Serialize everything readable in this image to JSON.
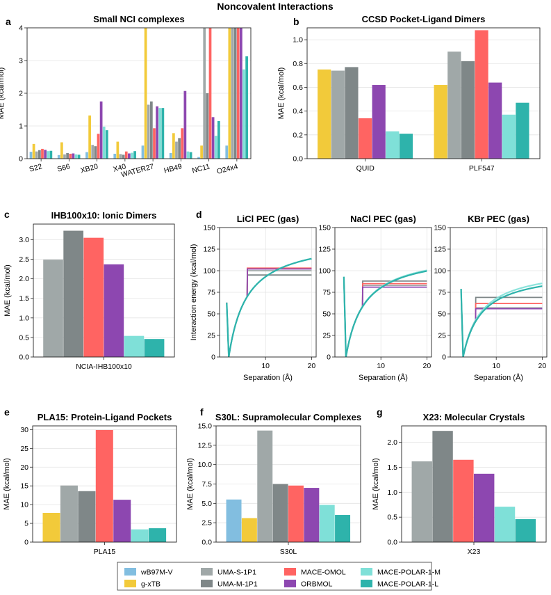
{
  "suptitle": "Noncovalent Interactions",
  "methods": [
    {
      "name": "wB97M-V",
      "color": "#82BEE0"
    },
    {
      "name": "g-xTB",
      "color": "#F2CA3A"
    },
    {
      "name": "UMA-S-1P1",
      "color": "#A0A8A8"
    },
    {
      "name": "UMA-M-1P1",
      "color": "#7F8788"
    },
    {
      "name": "MACE-OMOL",
      "color": "#FF6462"
    },
    {
      "name": "ORBMOL",
      "color": "#8D47B0"
    },
    {
      "name": "MACE-POLAR-1-M",
      "color": "#7FE0D8"
    },
    {
      "name": "MACE-POLAR-1-L",
      "color": "#2EB3AB"
    }
  ],
  "chart_data": [
    {
      "panel": "a",
      "type": "bar",
      "title": "Small NCI complexes",
      "xlabel": "",
      "ylabel": "MAE (kcal/mol)",
      "ylim": [
        0,
        4
      ],
      "yticks": [
        0,
        1,
        2,
        3,
        4
      ],
      "categories": [
        "S22",
        "S66",
        "XB20",
        "X40",
        "WATER27",
        "HB49",
        "NC11",
        "O24x4"
      ],
      "series": [
        {
          "name": "wB97M-V",
          "values": [
            0.21,
            0.11,
            0.2,
            0.15,
            0.4,
            0.17,
            0.05,
            0.4
          ]
        },
        {
          "name": "g-xTB",
          "values": [
            0.45,
            0.5,
            1.32,
            0.52,
            4.0,
            0.78,
            0.4,
            4.0
          ]
        },
        {
          "name": "UMA-S-1P1",
          "values": [
            0.22,
            0.13,
            0.42,
            0.14,
            1.65,
            0.52,
            4.0,
            4.0
          ]
        },
        {
          "name": "UMA-M-1P1",
          "values": [
            0.26,
            0.17,
            0.38,
            0.12,
            1.75,
            0.63,
            2.0,
            4.0
          ]
        },
        {
          "name": "MACE-OMOL",
          "values": [
            0.3,
            0.15,
            0.76,
            0.22,
            0.93,
            0.93,
            4.0,
            4.0
          ]
        },
        {
          "name": "ORBMOL",
          "values": [
            0.27,
            0.16,
            1.75,
            0.16,
            1.6,
            2.07,
            1.27,
            4.0
          ]
        },
        {
          "name": "MACE-POLAR-1-M",
          "values": [
            0.23,
            0.13,
            0.98,
            0.18,
            1.55,
            0.22,
            0.7,
            2.73
          ]
        },
        {
          "name": "MACE-POLAR-1-L",
          "values": [
            0.24,
            0.12,
            0.87,
            0.23,
            1.55,
            0.2,
            1.15,
            3.13
          ]
        }
      ]
    },
    {
      "panel": "b",
      "type": "bar",
      "title": "CCSD Pocket-Ligand Dimers",
      "xlabel": "",
      "ylabel": "MAE (kcal/mol)",
      "ylim": [
        0,
        1.1
      ],
      "yticks": [
        0.0,
        0.2,
        0.4,
        0.6,
        0.8,
        1.0
      ],
      "categories": [
        "QUID",
        "PLF547"
      ],
      "series": [
        {
          "name": "g-xTB",
          "values": [
            0.75,
            0.62
          ]
        },
        {
          "name": "UMA-S-1P1",
          "values": [
            0.74,
            0.9
          ]
        },
        {
          "name": "UMA-M-1P1",
          "values": [
            0.77,
            0.82
          ]
        },
        {
          "name": "MACE-OMOL",
          "values": [
            0.34,
            1.08
          ]
        },
        {
          "name": "ORBMOL",
          "values": [
            0.62,
            0.64
          ]
        },
        {
          "name": "MACE-POLAR-1-M",
          "values": [
            0.23,
            0.37
          ]
        },
        {
          "name": "MACE-POLAR-1-L",
          "values": [
            0.21,
            0.47
          ]
        }
      ]
    },
    {
      "panel": "c",
      "type": "bar",
      "title": "IHB100x10: Ionic Dimers",
      "xlabel": "",
      "ylabel": "MAE (kcal/mol)",
      "ylim": [
        0,
        3.4
      ],
      "yticks": [
        0.0,
        0.5,
        1.0,
        1.5,
        2.0,
        2.5,
        3.0
      ],
      "categories": [
        "NCIA-IHB100x10"
      ],
      "series": [
        {
          "name": "UMA-S-1P1",
          "values": [
            2.49
          ]
        },
        {
          "name": "UMA-M-1P1",
          "values": [
            3.23
          ]
        },
        {
          "name": "MACE-OMOL",
          "values": [
            3.05
          ]
        },
        {
          "name": "ORBMOL",
          "values": [
            2.37
          ]
        },
        {
          "name": "MACE-POLAR-1-M",
          "values": [
            0.54
          ]
        },
        {
          "name": "MACE-POLAR-1-L",
          "values": [
            0.46
          ]
        }
      ]
    },
    {
      "panel": "d",
      "type": "line",
      "title": "LiCl PEC (gas)",
      "xlabel": "Separation (Å)",
      "ylabel": "Interaction energy (kcal/mol)",
      "xlim": [
        0,
        21
      ],
      "ylim": [
        0,
        150
      ],
      "xticks": [
        10,
        20
      ],
      "yticks": [
        0,
        25,
        50,
        75,
        100,
        125,
        150
      ],
      "series": [
        {
          "name": "UMA-S-1P1",
          "plateau": 100,
          "cut": 6
        },
        {
          "name": "UMA-M-1P1",
          "plateau": 95,
          "cut": 6
        },
        {
          "name": "MACE-OMOL",
          "plateau": 103,
          "cut": 6
        },
        {
          "name": "ORBMOL",
          "plateau": 102,
          "cut": 6
        },
        {
          "name": "MACE-POLAR-1-M",
          "r0": 2.0,
          "De": 139,
          "a": 1.0,
          "b": 9.0,
          "c": 14.5,
          "spike": 63
        },
        {
          "name": "MACE-POLAR-1-L",
          "r0": 2.0,
          "De": 139,
          "a": 1.0,
          "b": 9.0,
          "c": 14.5,
          "spike": 63
        }
      ]
    },
    {
      "panel": "d2",
      "type": "line",
      "title": "NaCl PEC (gas)",
      "xlabel": "Separation (Å)",
      "ylabel": "",
      "xlim": [
        0,
        21
      ],
      "ylim": [
        0,
        150
      ],
      "xticks": [
        10,
        20
      ],
      "yticks": [
        0,
        25,
        50,
        75,
        100,
        125,
        150
      ],
      "series": [
        {
          "name": "UMA-S-1P1",
          "plateau": 83,
          "cut": 6
        },
        {
          "name": "UMA-M-1P1",
          "plateau": 88,
          "cut": 6
        },
        {
          "name": "MACE-OMOL",
          "plateau": 85,
          "cut": 6
        },
        {
          "name": "ORBMOL",
          "plateau": 81,
          "cut": 6
        },
        {
          "name": "MACE-POLAR-1-M",
          "r0": 2.4,
          "De": 123,
          "a": 1.0,
          "b": 9.0,
          "c": 14.5,
          "spike": 93
        },
        {
          "name": "MACE-POLAR-1-L",
          "r0": 2.4,
          "De": 122,
          "a": 1.0,
          "b": 9.0,
          "c": 14.5,
          "spike": 93
        }
      ]
    },
    {
      "panel": "d3",
      "type": "line",
      "title": "KBr PEC (gas)",
      "xlabel": "Separation (Å)",
      "ylabel": "",
      "xlim": [
        0,
        21
      ],
      "ylim": [
        0,
        150
      ],
      "xticks": [
        10,
        20
      ],
      "yticks": [
        0,
        25,
        50,
        75,
        100,
        125,
        150
      ],
      "series": [
        {
          "name": "UMA-S-1P1",
          "plateau": 57,
          "cut": 5.5
        },
        {
          "name": "UMA-M-1P1",
          "plateau": 69,
          "cut": 5.5
        },
        {
          "name": "MACE-OMOL",
          "plateau": 62,
          "cut": 5.5
        },
        {
          "name": "ORBMOL",
          "plateau": 56,
          "cut": 5.5
        },
        {
          "name": "MACE-POLAR-1-M",
          "r0": 2.8,
          "De": 105,
          "a": 1.0,
          "b": 9.0,
          "c": 14.5,
          "spike": 79
        },
        {
          "name": "MACE-POLAR-1-L",
          "r0": 2.8,
          "De": 101,
          "a": 1.0,
          "b": 9.0,
          "c": 14.5,
          "spike": 79
        }
      ]
    },
    {
      "panel": "e",
      "type": "bar",
      "title": "PLA15: Protein-Ligand Pockets",
      "xlabel": "",
      "ylabel": "MAE (kcal/mol)",
      "ylim": [
        0,
        31
      ],
      "yticks": [
        0,
        5,
        10,
        15,
        20,
        25,
        30
      ],
      "categories": [
        "PLA15"
      ],
      "series": [
        {
          "name": "g-xTB",
          "values": [
            7.8
          ]
        },
        {
          "name": "UMA-S-1P1",
          "values": [
            15.1
          ]
        },
        {
          "name": "UMA-M-1P1",
          "values": [
            13.6
          ]
        },
        {
          "name": "MACE-OMOL",
          "values": [
            29.9
          ]
        },
        {
          "name": "ORBMOL",
          "values": [
            11.3
          ]
        },
        {
          "name": "MACE-POLAR-1-M",
          "values": [
            3.4
          ]
        },
        {
          "name": "MACE-POLAR-1-L",
          "values": [
            3.7
          ]
        }
      ]
    },
    {
      "panel": "f",
      "type": "bar",
      "title": "S30L: Supramolecular Complexes",
      "xlabel": "",
      "ylabel": "MAE (kcal/mol)",
      "ylim": [
        0,
        15
      ],
      "yticks": [
        0.0,
        2.5,
        5.0,
        7.5,
        10.0,
        12.5,
        15.0
      ],
      "categories": [
        "S30L"
      ],
      "series": [
        {
          "name": "wB97M-V",
          "values": [
            5.5
          ]
        },
        {
          "name": "g-xTB",
          "values": [
            3.1
          ]
        },
        {
          "name": "UMA-S-1P1",
          "values": [
            14.4
          ]
        },
        {
          "name": "UMA-M-1P1",
          "values": [
            7.5
          ]
        },
        {
          "name": "MACE-OMOL",
          "values": [
            7.3
          ]
        },
        {
          "name": "ORBMOL",
          "values": [
            7.0
          ]
        },
        {
          "name": "MACE-POLAR-1-M",
          "values": [
            4.8
          ]
        },
        {
          "name": "MACE-POLAR-1-L",
          "values": [
            3.5
          ]
        }
      ]
    },
    {
      "panel": "g",
      "type": "bar",
      "title": "X23: Molecular Crystals",
      "xlabel": "",
      "ylabel": "MAE (kcal/mol)",
      "ylim": [
        0,
        2.33
      ],
      "yticks": [
        0.0,
        0.5,
        1.0,
        1.5,
        2.0
      ],
      "categories": [
        "X23"
      ],
      "series": [
        {
          "name": "UMA-S-1P1",
          "values": [
            1.62
          ]
        },
        {
          "name": "UMA-M-1P1",
          "values": [
            2.23
          ]
        },
        {
          "name": "MACE-OMOL",
          "values": [
            1.65
          ]
        },
        {
          "name": "ORBMOL",
          "values": [
            1.37
          ]
        },
        {
          "name": "MACE-POLAR-1-M",
          "values": [
            0.71
          ]
        },
        {
          "name": "MACE-POLAR-1-L",
          "values": [
            0.46
          ]
        }
      ]
    }
  ]
}
